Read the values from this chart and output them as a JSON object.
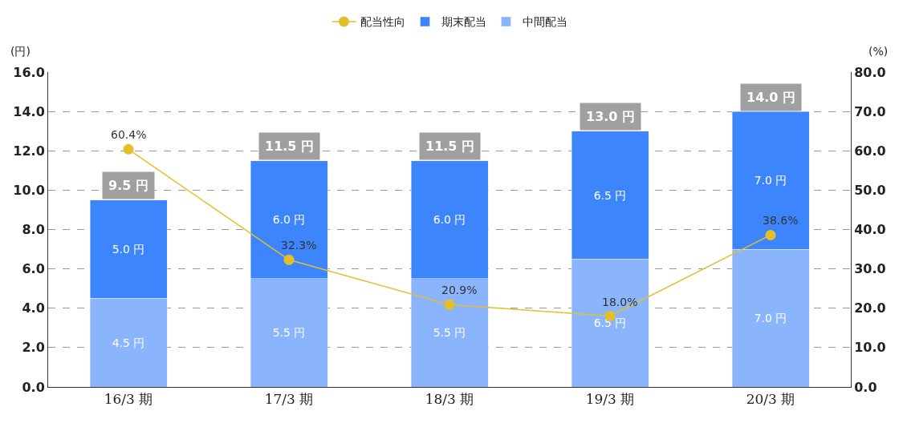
{
  "chart_data": {
    "type": "bar",
    "stacked": true,
    "categories": [
      "16/3 期",
      "17/3 期",
      "18/3 期",
      "19/3 期",
      "20/3 期"
    ],
    "ylabel": "(円)",
    "y2label": "(%)",
    "ylim": [
      0,
      16
    ],
    "yticks": [
      {
        "value": 0,
        "label": "0.0"
      },
      {
        "value": 2,
        "label": "2.0"
      },
      {
        "value": 4,
        "label": "4.0"
      },
      {
        "value": 6,
        "label": "6.0"
      },
      {
        "value": 8,
        "label": "8.0"
      },
      {
        "value": 10,
        "label": "10.0"
      },
      {
        "value": 12,
        "label": "12.0"
      },
      {
        "value": 14,
        "label": "14.0"
      },
      {
        "value": 16,
        "label": "16.0"
      }
    ],
    "y2lim": [
      0,
      80
    ],
    "y2ticks": [
      {
        "value": 0,
        "label": "0.0"
      },
      {
        "value": 10,
        "label": "10.0"
      },
      {
        "value": 20,
        "label": "20.0"
      },
      {
        "value": 30,
        "label": "30.0"
      },
      {
        "value": 40,
        "label": "40.0"
      },
      {
        "value": 50,
        "label": "50.0"
      },
      {
        "value": 60,
        "label": "60.0"
      },
      {
        "value": 70,
        "label": "70.0"
      },
      {
        "value": 80,
        "label": "80.0"
      }
    ],
    "grid": "y",
    "legend": "top",
    "marker": "circle",
    "line_style": "solid",
    "series": [
      {
        "name": "中間配当",
        "color": "#8ab4fc",
        "values": [
          4.5,
          5.5,
          5.5,
          6.5,
          7.0
        ],
        "value_labels": [
          "4.5 円",
          "5.5 円",
          "5.5 円",
          "6.5 円",
          "7.0 円"
        ]
      },
      {
        "name": "期末配当",
        "color": "#3d85fc",
        "values": [
          5.0,
          6.0,
          6.0,
          6.5,
          7.0
        ],
        "value_labels": [
          "5.0 円",
          "6.0 円",
          "6.0 円",
          "6.5 円",
          "7.0 円"
        ]
      },
      {
        "name": "配当性向",
        "type": "line",
        "axis": "y2",
        "color": "#e6be2a",
        "values": [
          60.4,
          32.3,
          20.9,
          18.0,
          38.6
        ],
        "value_labels": [
          "60.4%",
          "32.3%",
          "20.9%",
          "18.0%",
          "38.6%"
        ]
      }
    ],
    "totals": [
      "9.5 円",
      "11.5 円",
      "11.5 円",
      "13.0 円",
      "14.0 円"
    ]
  }
}
